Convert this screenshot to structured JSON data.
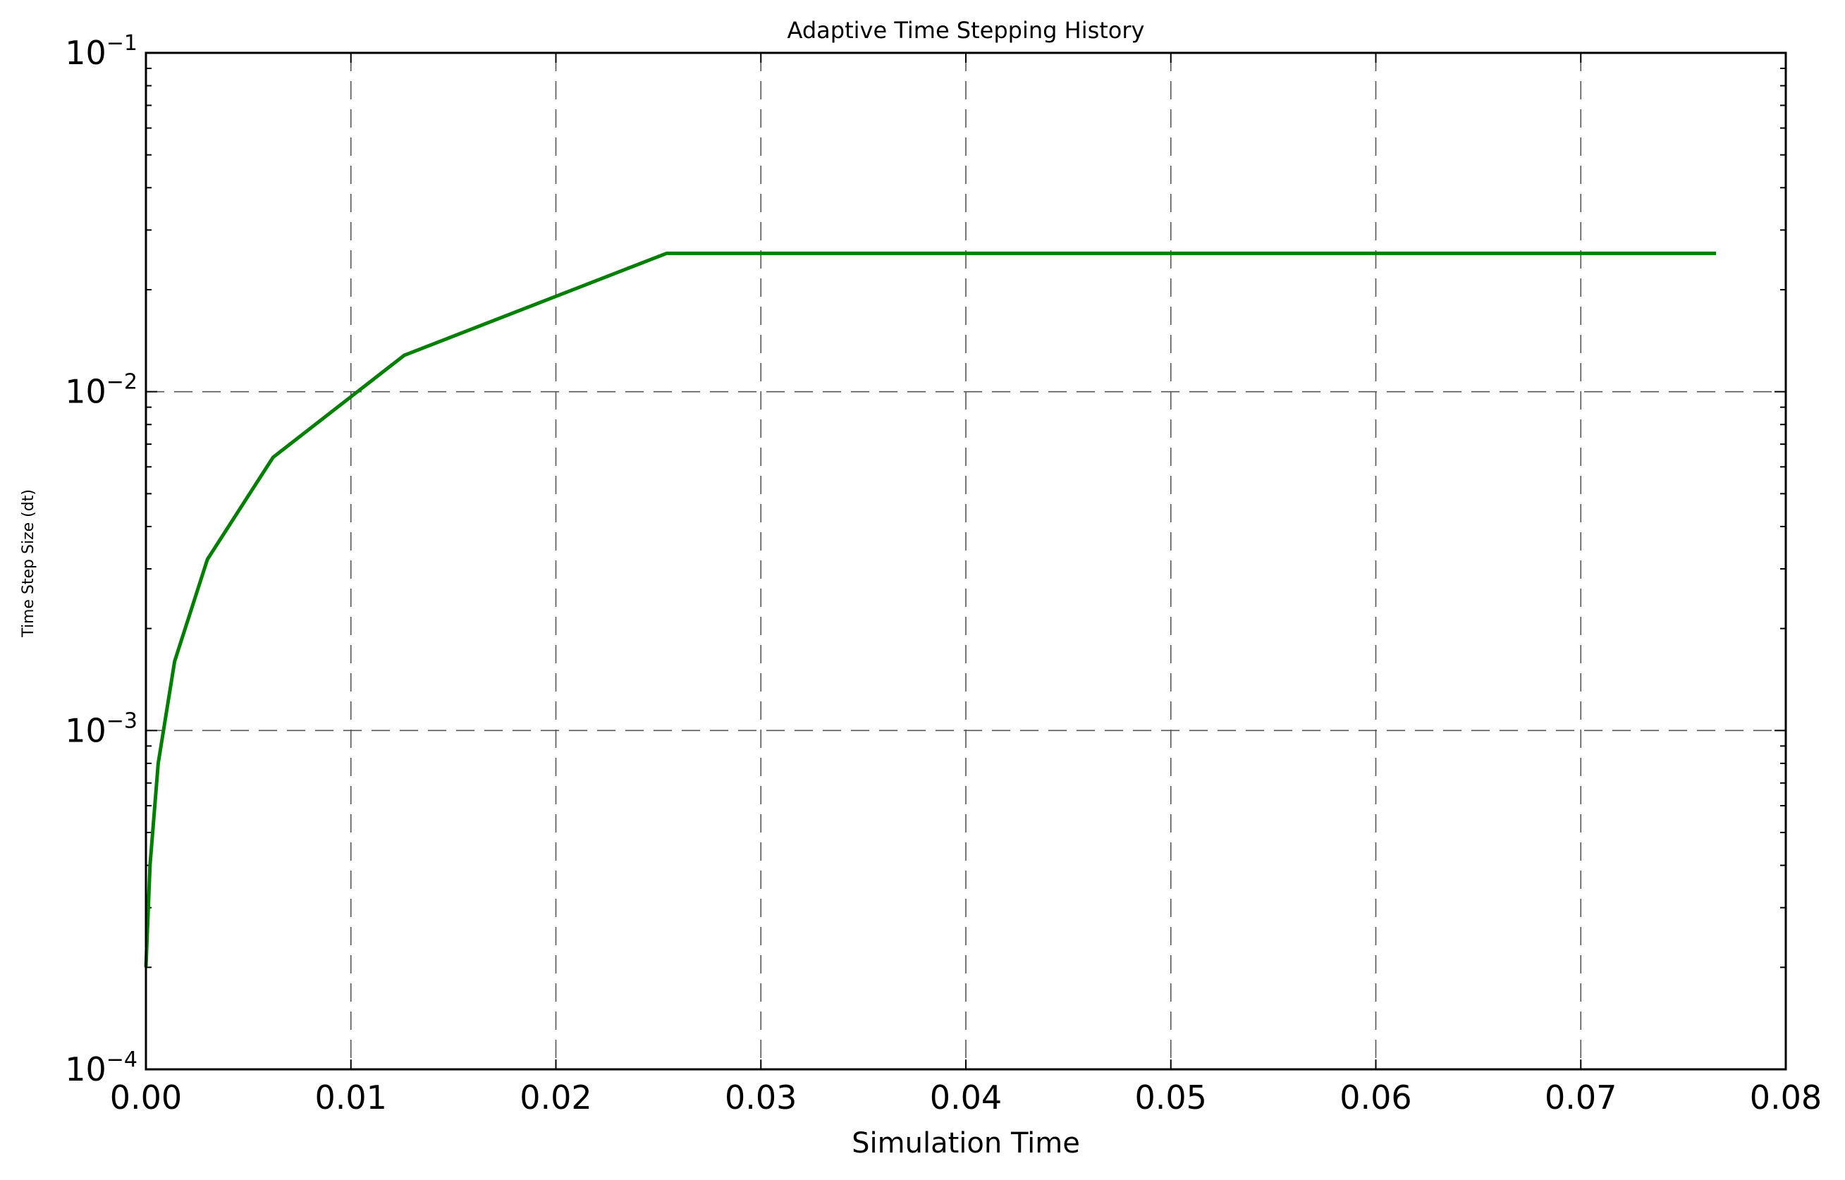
{
  "chart_data": {
    "type": "line",
    "title": "Adaptive Time Stepping History",
    "xlabel": "Simulation Time",
    "ylabel": "Time Step Size (dt)",
    "xlim": [
      0,
      0.08
    ],
    "ylim": [
      0.0001,
      0.1
    ],
    "yscale": "log",
    "grid": true,
    "x_ticks": [
      "0.00",
      "0.01",
      "0.02",
      "0.03",
      "0.04",
      "0.05",
      "0.06",
      "0.07",
      "0.08"
    ],
    "y_ticks": [
      {
        "value": 0.0001,
        "base": "10",
        "exponent": "−4"
      },
      {
        "value": 0.001,
        "base": "10",
        "exponent": "−3"
      },
      {
        "value": 0.01,
        "base": "10",
        "exponent": "−2"
      },
      {
        "value": 0.1,
        "base": "10",
        "exponent": "−1"
      }
    ],
    "series": [
      {
        "color": "#008000",
        "x": [
          0,
          0.0002,
          0.0006,
          0.0014,
          0.003,
          0.0062,
          0.0126,
          0.0254,
          0.0766
        ],
        "y": [
          0.0002,
          0.0004,
          0.0008,
          0.0016,
          0.0032,
          0.0064,
          0.0128,
          0.0256,
          0.0256
        ]
      }
    ]
  }
}
